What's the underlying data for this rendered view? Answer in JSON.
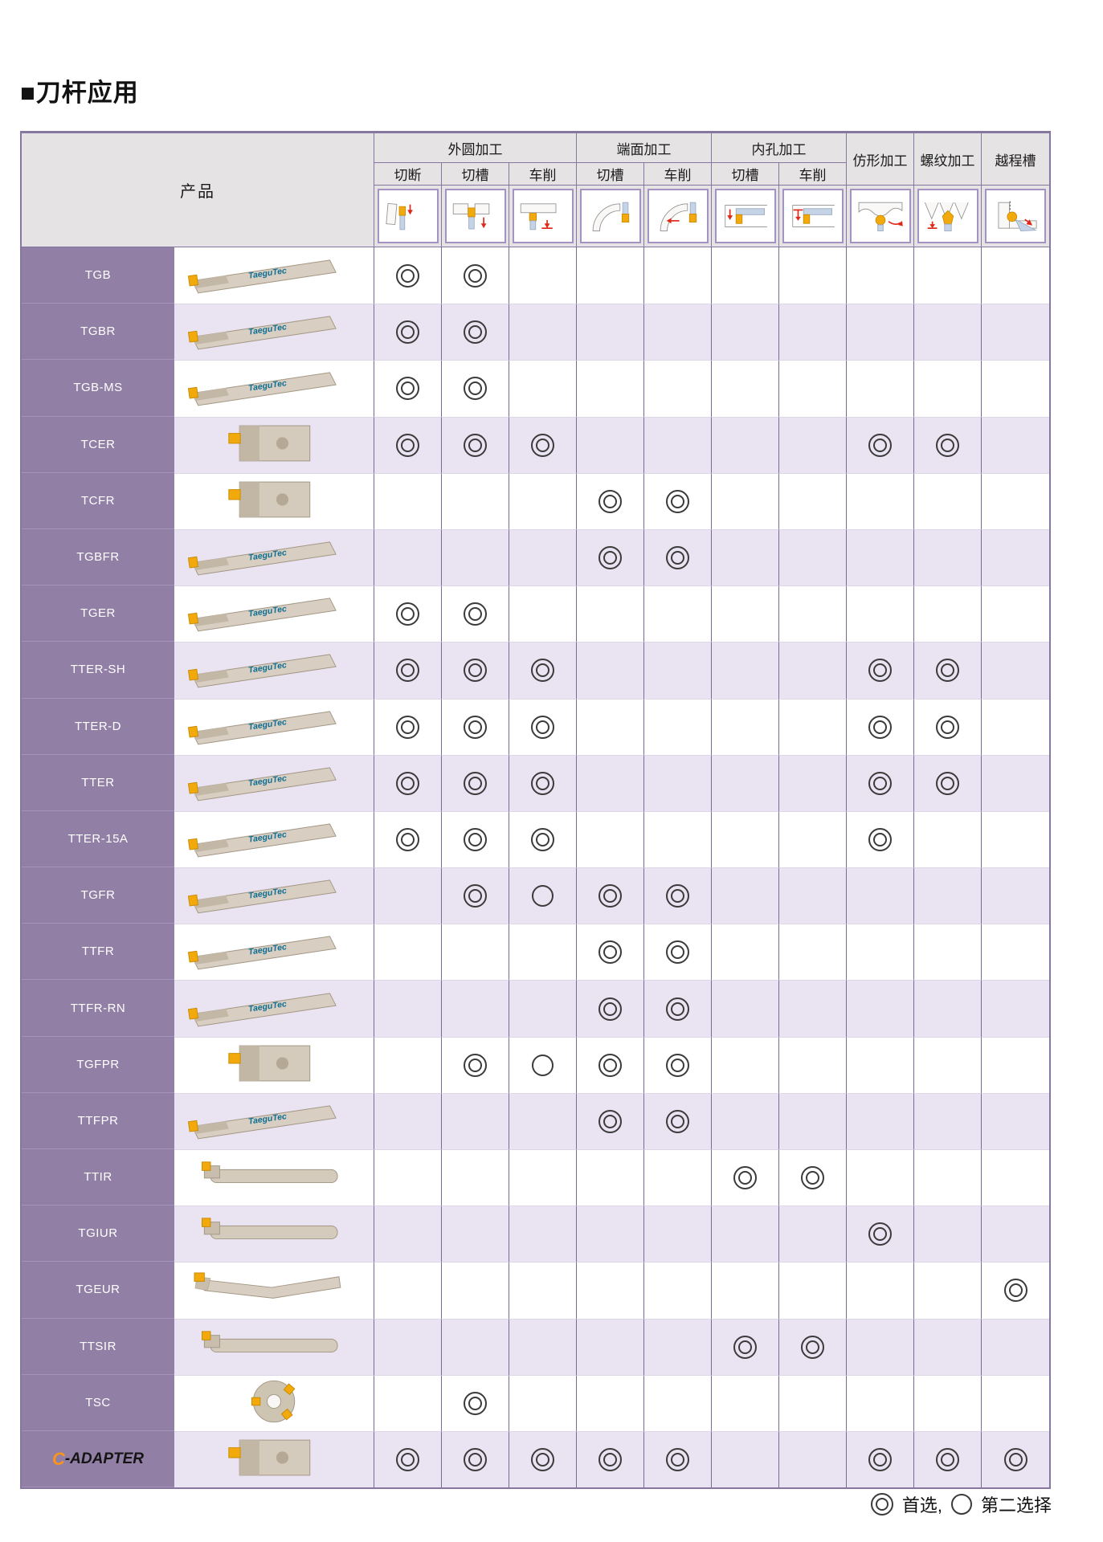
{
  "page": {
    "title": "■刀杆应用"
  },
  "colors": {
    "accent_purple": "#8577a0",
    "name_cell_purple": "#927fa6",
    "row_lavender": "#eae3f2",
    "header_gray": "#e5e3e4",
    "insert_yellow": "#f2a90c",
    "arrow_red": "#e02818",
    "marker_stroke": "#3b3b3b",
    "logo_orange": "#f7941d"
  },
  "table": {
    "product_header": "产品",
    "groups": [
      {
        "label": "外圆加工",
        "span": 3
      },
      {
        "label": "端面加工",
        "span": 2
      },
      {
        "label": "内孔加工",
        "span": 2
      }
    ],
    "sub_columns": [
      {
        "label": "切断",
        "icon": "external-cutoff-icon"
      },
      {
        "label": "切槽",
        "icon": "external-grooving-icon"
      },
      {
        "label": "车削",
        "icon": "external-turning-icon"
      },
      {
        "label": "切槽",
        "icon": "face-grooving-icon"
      },
      {
        "label": "车削",
        "icon": "face-turning-icon"
      },
      {
        "label": "切槽",
        "icon": "internal-grooving-icon"
      },
      {
        "label": "车削",
        "icon": "internal-turning-icon"
      }
    ],
    "single_columns": [
      {
        "label": "仿形加工",
        "icon": "profiling-icon"
      },
      {
        "label": "螺纹加工",
        "icon": "threading-icon"
      },
      {
        "label": "越程槽",
        "icon": "undercut-icon"
      }
    ],
    "mark_legend": {
      "2": "first choice ◎",
      "1": "second choice ○",
      "0": "none"
    },
    "rows": [
      {
        "name": "TGB",
        "photo": "bar-tool",
        "marks": [
          2,
          2,
          0,
          0,
          0,
          0,
          0,
          0,
          0,
          0
        ]
      },
      {
        "name": "TGBR",
        "photo": "bar-tool",
        "marks": [
          2,
          2,
          0,
          0,
          0,
          0,
          0,
          0,
          0,
          0
        ]
      },
      {
        "name": "TGB-MS",
        "photo": "bar-tool",
        "marks": [
          2,
          2,
          0,
          0,
          0,
          0,
          0,
          0,
          0,
          0
        ]
      },
      {
        "name": "TCER",
        "photo": "block-tool",
        "marks": [
          2,
          2,
          2,
          0,
          0,
          0,
          0,
          2,
          2,
          0
        ]
      },
      {
        "name": "TCFR",
        "photo": "block-tool",
        "marks": [
          0,
          0,
          0,
          2,
          2,
          0,
          0,
          0,
          0,
          0
        ]
      },
      {
        "name": "TGBFR",
        "photo": "bar-tool",
        "marks": [
          0,
          0,
          0,
          2,
          2,
          0,
          0,
          0,
          0,
          0
        ]
      },
      {
        "name": "TGER",
        "photo": "bar-tool",
        "marks": [
          2,
          2,
          0,
          0,
          0,
          0,
          0,
          0,
          0,
          0
        ]
      },
      {
        "name": "TTER-SH",
        "photo": "bar-tool",
        "marks": [
          2,
          2,
          2,
          0,
          0,
          0,
          0,
          2,
          2,
          0
        ]
      },
      {
        "name": "TTER-D",
        "photo": "bar-tool",
        "marks": [
          2,
          2,
          2,
          0,
          0,
          0,
          0,
          2,
          2,
          0
        ]
      },
      {
        "name": "TTER",
        "photo": "bar-tool",
        "marks": [
          2,
          2,
          2,
          0,
          0,
          0,
          0,
          2,
          2,
          0
        ]
      },
      {
        "name": "TTER-15A",
        "photo": "bar-tool",
        "marks": [
          2,
          2,
          2,
          0,
          0,
          0,
          0,
          2,
          0,
          0
        ]
      },
      {
        "name": "TGFR",
        "photo": "bar-tool",
        "marks": [
          0,
          2,
          1,
          2,
          2,
          0,
          0,
          0,
          0,
          0
        ]
      },
      {
        "name": "TTFR",
        "photo": "bar-tool",
        "marks": [
          0,
          0,
          0,
          2,
          2,
          0,
          0,
          0,
          0,
          0
        ]
      },
      {
        "name": "TTFR-RN",
        "photo": "bar-tool",
        "marks": [
          0,
          0,
          0,
          2,
          2,
          0,
          0,
          0,
          0,
          0
        ]
      },
      {
        "name": "TGFPR",
        "photo": "block-tool",
        "marks": [
          0,
          2,
          1,
          2,
          2,
          0,
          0,
          0,
          0,
          0
        ]
      },
      {
        "name": "TTFPR",
        "photo": "bar-tool",
        "marks": [
          0,
          0,
          0,
          2,
          2,
          0,
          0,
          0,
          0,
          0
        ]
      },
      {
        "name": "TTIR",
        "photo": "round-bar-tool",
        "marks": [
          0,
          0,
          0,
          0,
          0,
          2,
          2,
          0,
          0,
          0
        ]
      },
      {
        "name": "TGIUR",
        "photo": "round-bar-tool",
        "marks": [
          0,
          0,
          0,
          0,
          0,
          0,
          0,
          2,
          0,
          0
        ]
      },
      {
        "name": "TGEUR",
        "photo": "angled-tool",
        "marks": [
          0,
          0,
          0,
          0,
          0,
          0,
          0,
          0,
          0,
          2
        ]
      },
      {
        "name": "TTSIR",
        "photo": "round-bar-tool",
        "marks": [
          0,
          0,
          0,
          0,
          0,
          2,
          2,
          0,
          0,
          0
        ]
      },
      {
        "name": "TSC",
        "photo": "disc-tool",
        "marks": [
          0,
          2,
          0,
          0,
          0,
          0,
          0,
          0,
          0,
          0
        ]
      },
      {
        "name": "C-ADAPTER",
        "photo": "block-tool",
        "marks": [
          2,
          2,
          2,
          2,
          2,
          0,
          0,
          2,
          2,
          2
        ],
        "logo_parts": {
          "c": "C",
          "rest": "-ADAPTER"
        }
      }
    ]
  },
  "legend": {
    "first_label": "首选,",
    "second_label": "第二选择"
  }
}
